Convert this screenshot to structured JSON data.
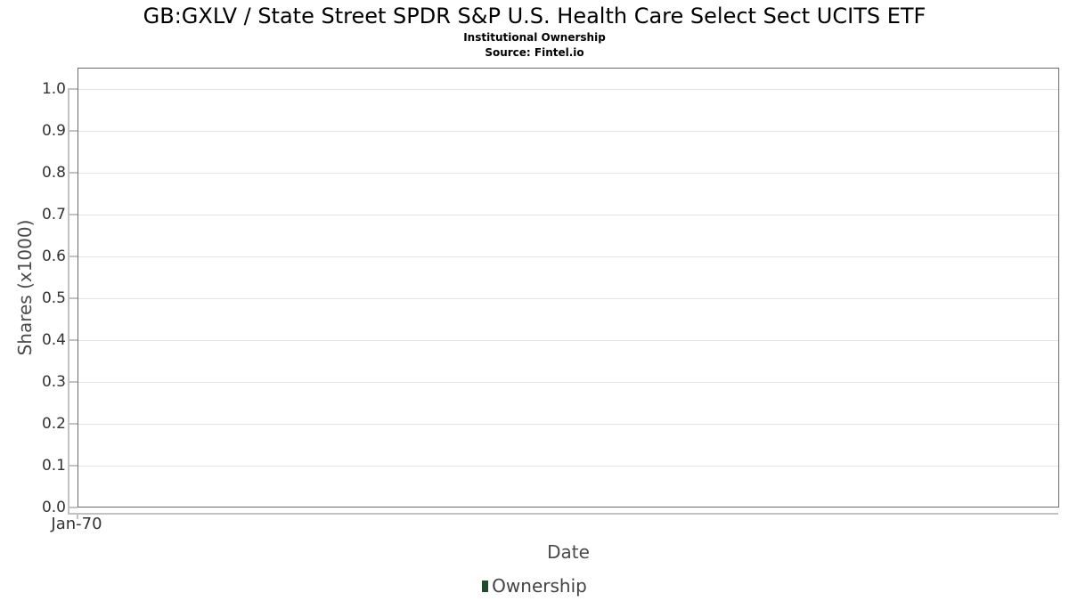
{
  "chart_data": {
    "type": "bar",
    "title": "GB:GXLV / State Street SPDR S&P U.S. Health Care Select Sect UCITS ETF",
    "subtitle": "Institutional Ownership",
    "source": "Source: Fintel.io",
    "xlabel": "Date",
    "ylabel": "Shares (x1000)",
    "ylim": [
      0.0,
      1.0
    ],
    "y_tick_step": 0.1,
    "y_ticks": [
      "1.0",
      "0.9",
      "0.8",
      "0.7",
      "0.6",
      "0.5",
      "0.4",
      "0.3",
      "0.2",
      "0.1",
      "0.0"
    ],
    "x_ticks": [
      "Jan-70"
    ],
    "grid": true,
    "legend_position": "bottom",
    "series": [
      {
        "name": "Ownership",
        "color": "#1e4d2c",
        "x": [],
        "values": []
      }
    ]
  },
  "legend": {
    "items": [
      {
        "label": "Ownership",
        "color": "#1e4d2c"
      }
    ]
  },
  "colors": {
    "background": "#ffffff",
    "plot_border": "#6b6b6b",
    "gridline": "#e4e4e4",
    "axis_line": "#c2c2c2",
    "tick_label": "#333333",
    "axis_title": "#4a4a4a",
    "title_text": "#000000",
    "legend_text": "#434343",
    "series_ownership": "#1e4d2c"
  }
}
